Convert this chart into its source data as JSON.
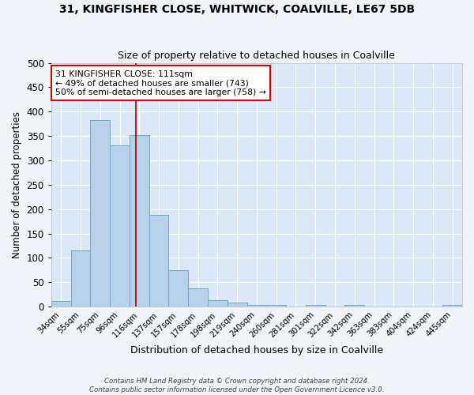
{
  "title": "31, KINGFISHER CLOSE, WHITWICK, COALVILLE, LE67 5DB",
  "subtitle": "Size of property relative to detached houses in Coalville",
  "xlabel": "Distribution of detached houses by size in Coalville",
  "ylabel": "Number of detached properties",
  "bar_labels": [
    "34sqm",
    "55sqm",
    "75sqm",
    "96sqm",
    "116sqm",
    "137sqm",
    "157sqm",
    "178sqm",
    "198sqm",
    "219sqm",
    "240sqm",
    "260sqm",
    "281sqm",
    "301sqm",
    "322sqm",
    "342sqm",
    "363sqm",
    "383sqm",
    "404sqm",
    "424sqm",
    "445sqm"
  ],
  "bar_values": [
    12,
    115,
    383,
    331,
    352,
    189,
    75,
    38,
    13,
    8,
    4,
    3,
    0,
    4,
    0,
    3,
    0,
    0,
    0,
    0,
    4
  ],
  "bar_color": "#b8d0e8",
  "bar_edge_color": "#6aaad4",
  "background_color": "#dce8f5",
  "grid_color": "#ffffff",
  "red_line_x": 3.82,
  "annotation_text": "31 KINGFISHER CLOSE: 111sqm\n← 49% of detached houses are smaller (743)\n50% of semi-detached houses are larger (758) →",
  "annotation_box_color": "#ffffff",
  "annotation_box_edge_color": "#cc0000",
  "footer_line1": "Contains HM Land Registry data © Crown copyright and database right 2024.",
  "footer_line2": "Contains public sector information licensed under the Open Government Licence v3.0.",
  "ylim": [
    0,
    500
  ],
  "yticks": [
    0,
    50,
    100,
    150,
    200,
    250,
    300,
    350,
    400,
    450,
    500
  ],
  "fig_bg": "#f0f4f8"
}
